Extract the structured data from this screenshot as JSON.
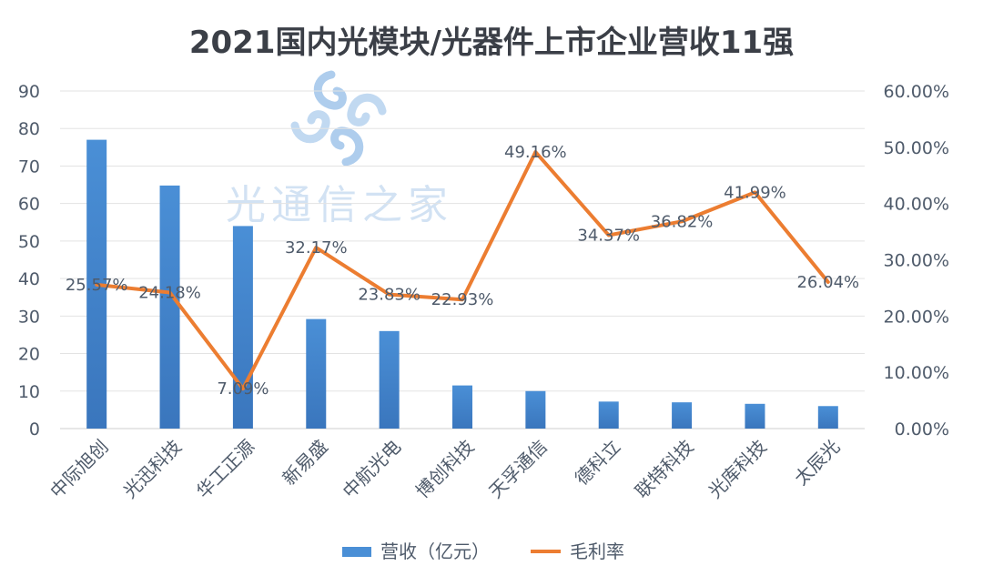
{
  "chart_data": {
    "type": "bar+line",
    "title": "2021国内光模块/光器件上市企业营收11强",
    "categories": [
      "中际旭创",
      "光迅科技",
      "华工正源",
      "新易盛",
      "中航光电",
      "博创科技",
      "天孚通信",
      "德科立",
      "联特科技",
      "光库科技",
      "太辰光"
    ],
    "series": [
      {
        "name": "营收（亿元）",
        "type": "bar",
        "axis": "left",
        "color": "#4a8fd6",
        "values": [
          77,
          64.8,
          54,
          29.2,
          26,
          11.5,
          10,
          7.2,
          7,
          6.6,
          6
        ]
      },
      {
        "name": "毛利率",
        "type": "line",
        "axis": "right",
        "color": "#ec7d31",
        "values": [
          25.57,
          24.18,
          7.09,
          32.17,
          23.83,
          22.93,
          49.16,
          34.37,
          36.82,
          41.99,
          26.04
        ],
        "labels": [
          "25.57%",
          "24.18%",
          "7.09%",
          "32.17%",
          "23.83%",
          "22.93%",
          "49.16%",
          "34.37%",
          "36.82%",
          "41.99%",
          "26.04%"
        ]
      }
    ],
    "y_left": {
      "min": 0,
      "max": 90,
      "ticks": [
        "0",
        "10",
        "20",
        "30",
        "40",
        "50",
        "60",
        "70",
        "80",
        "90"
      ]
    },
    "y_right": {
      "min": 0,
      "max": 60,
      "ticks": [
        "0.00%",
        "10.00%",
        "20.00%",
        "30.00%",
        "40.00%",
        "50.00%",
        "60.00%"
      ]
    },
    "grid": true,
    "legend_position": "bottom"
  },
  "watermark": {
    "text": "光通信之家",
    "colors": [
      "#7fb2e5",
      "#b9d4ef"
    ]
  }
}
